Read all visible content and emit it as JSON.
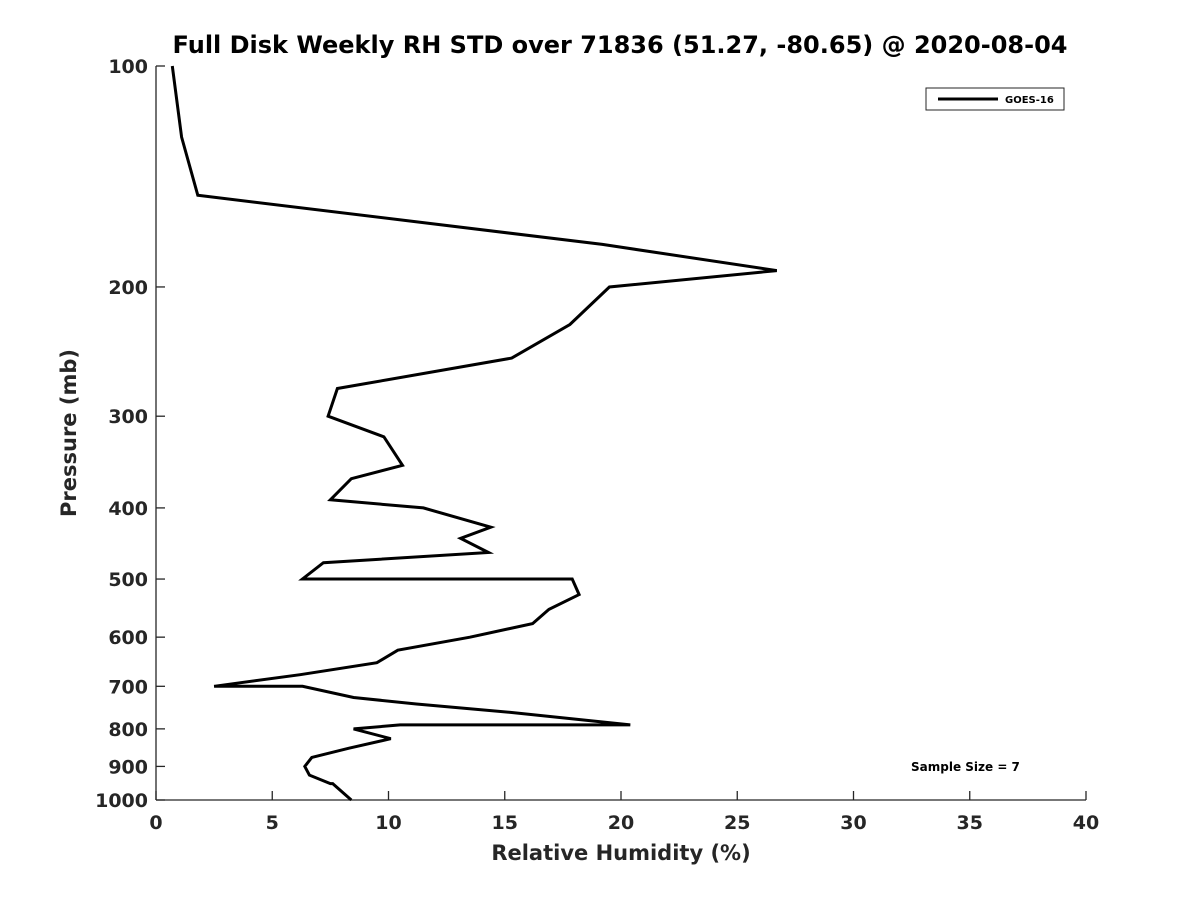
{
  "chart_data": {
    "type": "line",
    "title": "Full Disk Weekly RH STD over 71836 (51.27, -80.65) @ 2020-08-04",
    "xlabel": "Relative Humidity (%)",
    "ylabel": "Pressure (mb)",
    "xlim": [
      0,
      40
    ],
    "ylim": [
      100,
      1000
    ],
    "yscale": "log",
    "y_reversed": true,
    "x_ticks": [
      "0",
      "5",
      "10",
      "15",
      "20",
      "25",
      "30",
      "35",
      "40"
    ],
    "y_ticks": [
      "100",
      "200",
      "300",
      "400",
      "500",
      "600",
      "700",
      "800",
      "900",
      "1000"
    ],
    "grid": false,
    "legend_position": "top-right",
    "annotation": "Sample Size = 7",
    "series": [
      {
        "name": "GOES-16",
        "color": "#000000",
        "x": [
          0.7,
          1.1,
          1.8,
          19.2,
          26.7,
          19.5,
          17.8,
          15.3,
          7.8,
          7.4,
          9.8,
          10.6,
          8.4,
          7.5,
          11.5,
          14.4,
          13.1,
          14.3,
          7.2,
          6.3,
          17.9,
          18.2,
          16.9,
          16.2,
          13.5,
          10.4,
          9.5,
          6.2,
          2.5,
          6.3,
          8.5,
          11.2,
          15.3,
          20.4,
          10.5,
          8.5,
          10.1,
          8.3,
          6.7,
          6.4,
          6.6,
          7.5,
          7.6,
          8.4
        ],
        "y": [
          100,
          125,
          150,
          175,
          190,
          200,
          225,
          250,
          275,
          300,
          320,
          350,
          365,
          390,
          400,
          425,
          440,
          460,
          475,
          500,
          500,
          525,
          550,
          575,
          600,
          625,
          650,
          675,
          700,
          700,
          725,
          740,
          760,
          790,
          790,
          800,
          825,
          850,
          875,
          900,
          925,
          950,
          950,
          1000
        ]
      }
    ]
  }
}
